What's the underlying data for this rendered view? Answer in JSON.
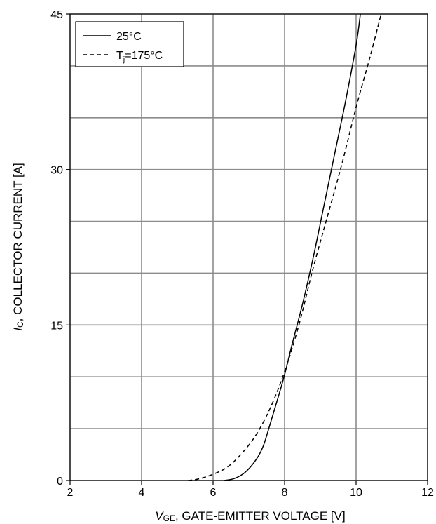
{
  "chart_data": {
    "type": "line",
    "xlabel": {
      "italic": "V",
      "sub": "GE",
      "rest": ", GATE-EMITTER VOLTAGE [V]"
    },
    "ylabel": {
      "italic": "I",
      "sub": "C",
      "rest": ", COLLECTOR CURRENT [A]"
    },
    "xlim": [
      2,
      12
    ],
    "ylim": [
      0,
      45
    ],
    "x_ticks": [
      2,
      4,
      6,
      8,
      10,
      12
    ],
    "x_tick_labels": [
      "2",
      "4",
      "6",
      "8",
      "10",
      "12"
    ],
    "y_ticks": [
      0,
      15,
      30,
      45
    ],
    "y_tick_labels": [
      "0",
      "15",
      "30",
      "45"
    ],
    "x_grid": [
      2,
      4,
      6,
      8,
      10,
      12
    ],
    "y_grid": [
      0,
      5,
      10,
      15,
      20,
      25,
      30,
      35,
      40,
      45
    ],
    "grid": true,
    "legend_position": "top-left",
    "series": [
      {
        "name": "25°C",
        "legend": {
          "main": "25°C"
        },
        "style": "solid",
        "color": "#000000",
        "x": [
          6.3,
          6.6,
          6.9,
          7.2,
          7.4,
          7.6,
          7.8,
          8.0,
          8.2,
          8.5,
          8.8,
          9.1,
          9.4,
          9.7,
          10.0,
          10.12
        ],
        "y": [
          0,
          0.2,
          0.8,
          2.0,
          3.3,
          5.5,
          7.8,
          10.2,
          13.0,
          17.0,
          21.5,
          26.5,
          31.5,
          36.5,
          42.0,
          45
        ]
      },
      {
        "name": "Tj=175°C",
        "legend": {
          "pre": "T",
          "sub": "j",
          "post": "=175°C"
        },
        "style": "dashed",
        "color": "#000000",
        "x": [
          5.3,
          5.6,
          6.0,
          6.4,
          6.8,
          7.2,
          7.6,
          8.0,
          8.4,
          8.8,
          9.2,
          9.6,
          10.0,
          10.4,
          10.7
        ],
        "y": [
          0,
          0.15,
          0.6,
          1.3,
          2.6,
          4.4,
          7.0,
          10.5,
          15.0,
          20.5,
          25.5,
          30.5,
          36.0,
          41.0,
          45
        ]
      }
    ]
  }
}
